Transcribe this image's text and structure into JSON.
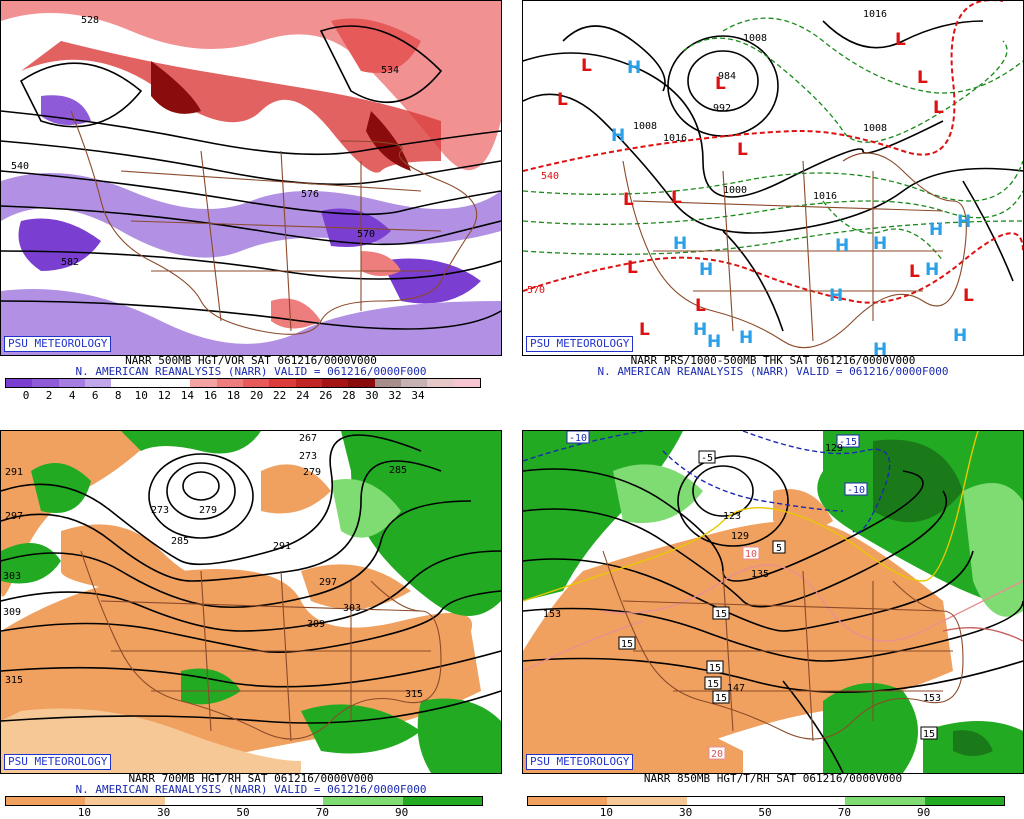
{
  "branding": "PSU METEOROLOGY",
  "panels": [
    {
      "id": "p500",
      "caption_line1": "NARR 500MB HGT/VOR SAT 061216/0000V000",
      "caption_line2": "N. AMERICAN REANALYSIS (NARR) VALID = 061216/0000F000",
      "contour_labels": [
        "528",
        "534",
        "582",
        "576",
        "570",
        "540"
      ],
      "colorbar": {
        "ticks": [
          "0",
          "2",
          "4",
          "6",
          "8",
          "10",
          "12",
          "14",
          "16",
          "18",
          "20",
          "22",
          "24",
          "26",
          "28",
          "30",
          "32",
          "34"
        ],
        "colors": [
          "#7a3fd1",
          "#8e5ad8",
          "#a57ee0",
          "#c0a7ea",
          "#ffffff",
          "#ffffff",
          "#ffffff",
          "#f4a3a3",
          "#ee7e7e",
          "#e65a5a",
          "#db3b3b",
          "#c22525",
          "#a51515",
          "#8a0c0c",
          "#a88d8d",
          "#c6b2b2",
          "#e6c8c8",
          "#f7c4d2"
        ]
      }
    },
    {
      "id": "pprs",
      "caption_line1": "NARR PRS/1000-500MB THK SAT 061216/0000V000",
      "caption_line2": "N. AMERICAN REANALYSIS (NARR) VALID = 061216/0000F000",
      "contour_labels": [
        "1008",
        "1016",
        "1000",
        "1016",
        "540",
        "570",
        "984",
        "992",
        "1008",
        "1008",
        "1016"
      ],
      "highs": [
        "H",
        "H",
        "H",
        "H",
        "H",
        "H",
        "H",
        "H",
        "H",
        "H",
        "H",
        "H",
        "H",
        "H",
        "H"
      ],
      "lows": [
        "L",
        "L",
        "L",
        "L",
        "L",
        "L",
        "L",
        "L",
        "L",
        "L",
        "L",
        "L",
        "L",
        "L"
      ]
    },
    {
      "id": "p700",
      "caption_line1": "NARR 700MB HGT/RH SAT 061216/0000V000",
      "caption_line2": "N. AMERICAN REANALYSIS (NARR) VALID = 061216/0000F000",
      "contour_labels": [
        "267",
        "273",
        "279",
        "285",
        "273",
        "279",
        "285",
        "291",
        "297",
        "303",
        "309",
        "291",
        "297",
        "303",
        "309",
        "315",
        "315"
      ],
      "colorbar": {
        "ticks": [
          "10",
          "30",
          "50",
          "70",
          "90"
        ],
        "colors": [
          "#f0a160",
          "#f6c896",
          "#ffffff",
          "#ffffff",
          "#7fdc72",
          "#22aa22"
        ]
      }
    },
    {
      "id": "p850",
      "caption_line1": "NARR 850MB HGT/T/RH SAT 061216/0000V000",
      "caption_line2": "",
      "contour_labels": [
        "-10",
        "-15",
        "-10",
        "-5",
        "129",
        "123",
        "129",
        "135",
        "153",
        "147",
        "153"
      ],
      "temp_boxes": [
        "5",
        "10",
        "15",
        "15",
        "15",
        "15",
        "15",
        "20",
        "15"
      ],
      "colorbar": {
        "ticks": [
          "10",
          "30",
          "50",
          "70",
          "90"
        ],
        "colors": [
          "#f0a160",
          "#f6c896",
          "#ffffff",
          "#ffffff",
          "#7fdc72",
          "#22aa22"
        ]
      }
    }
  ]
}
